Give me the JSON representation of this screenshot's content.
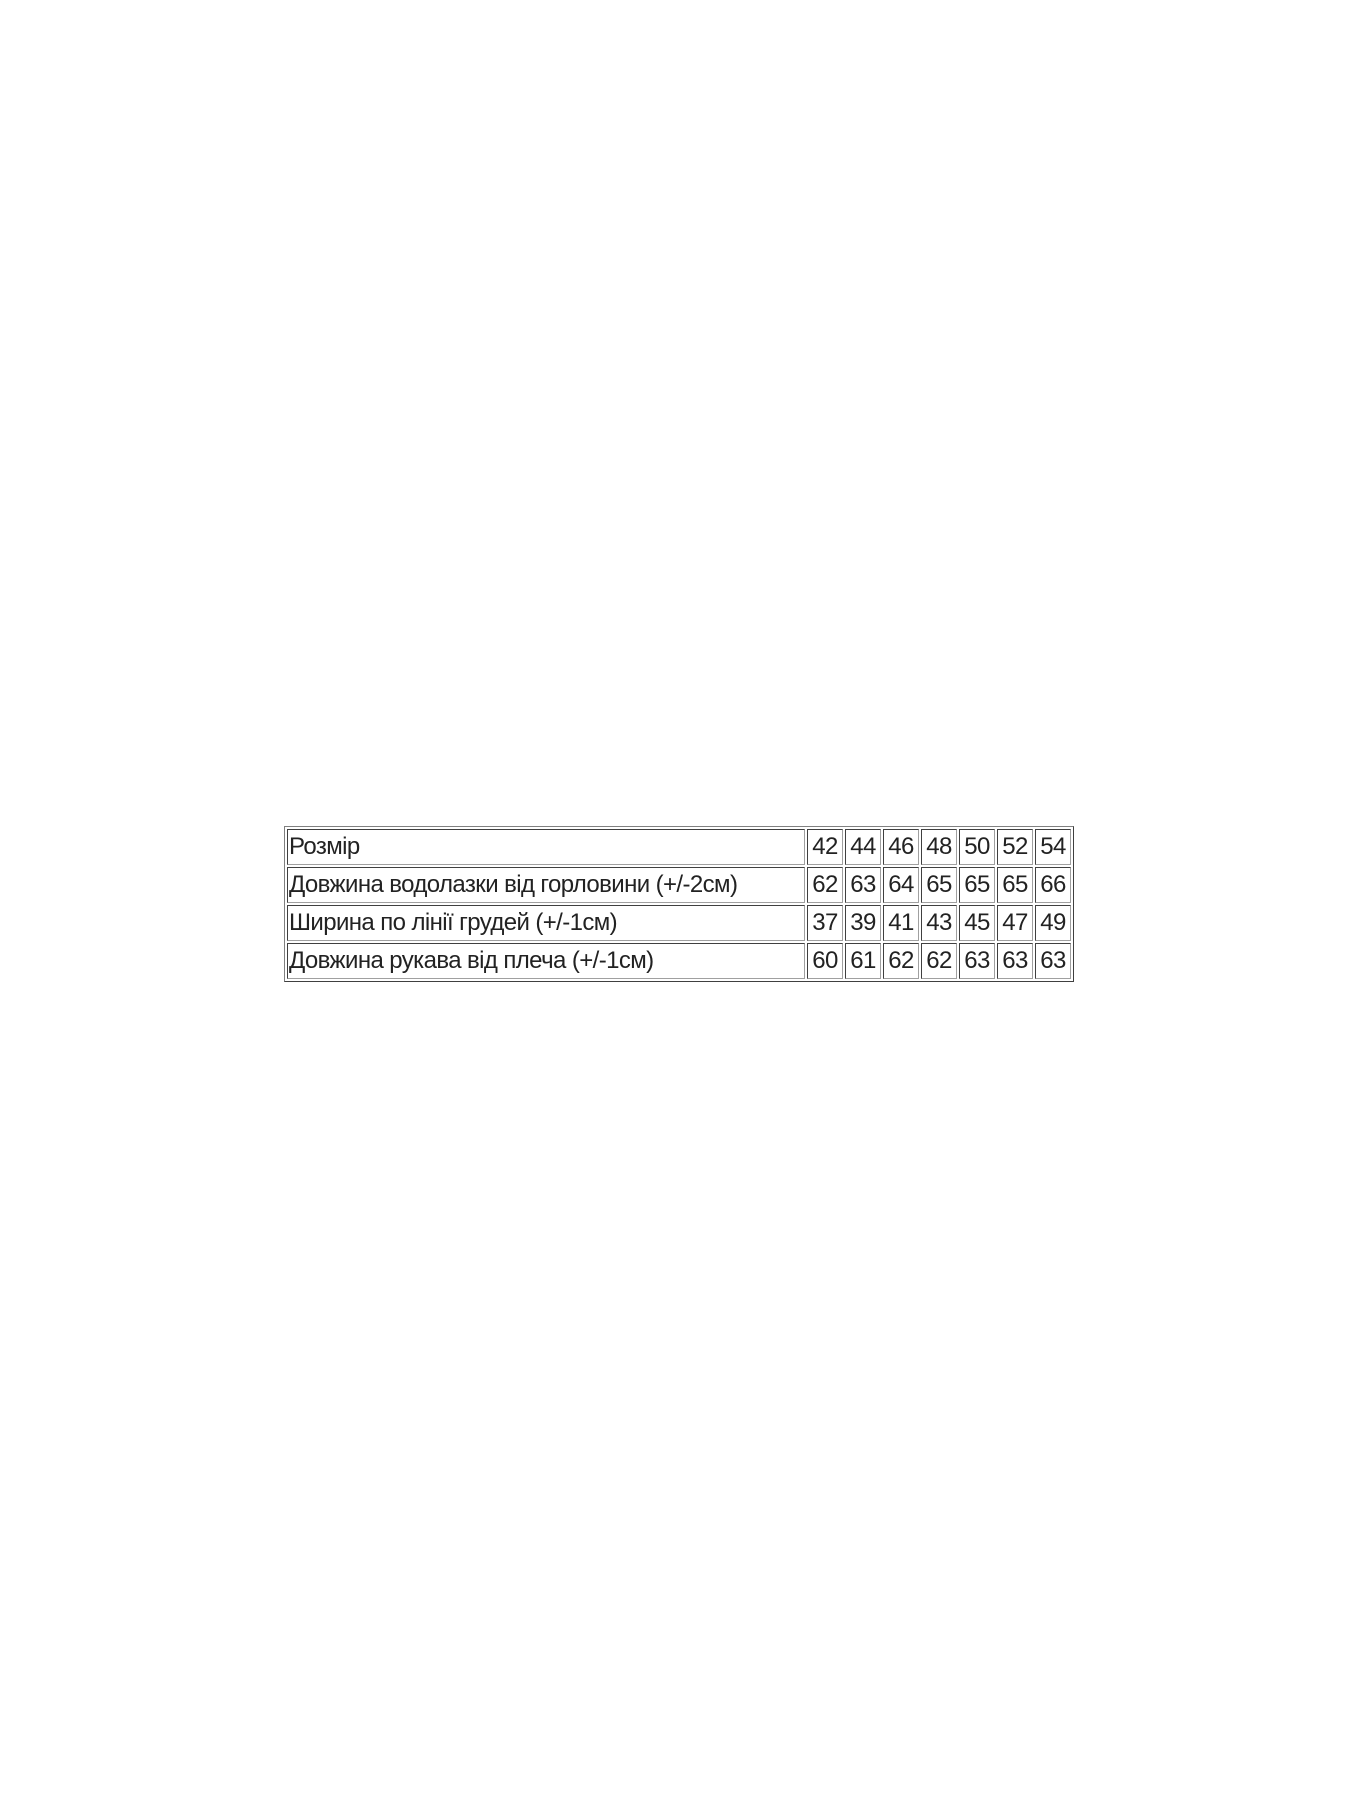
{
  "size_table": {
    "rows": [
      {
        "label": "Розмір",
        "values": [
          "42",
          "44",
          "46",
          "48",
          "50",
          "52",
          "54"
        ]
      },
      {
        "label": "Довжина водолазки від горловини (+/-2см)",
        "values": [
          "62",
          "63",
          "64",
          "65",
          "65",
          "65",
          "66"
        ]
      },
      {
        "label": "Ширина по лінії грудей (+/-1см)",
        "values": [
          "37",
          "39",
          "41",
          "43",
          "45",
          "47",
          "49"
        ]
      },
      {
        "label": "Довжина рукава від плеча (+/-1см)",
        "values": [
          "60",
          "61",
          "62",
          "62",
          "63",
          "63",
          "63"
        ]
      }
    ]
  }
}
